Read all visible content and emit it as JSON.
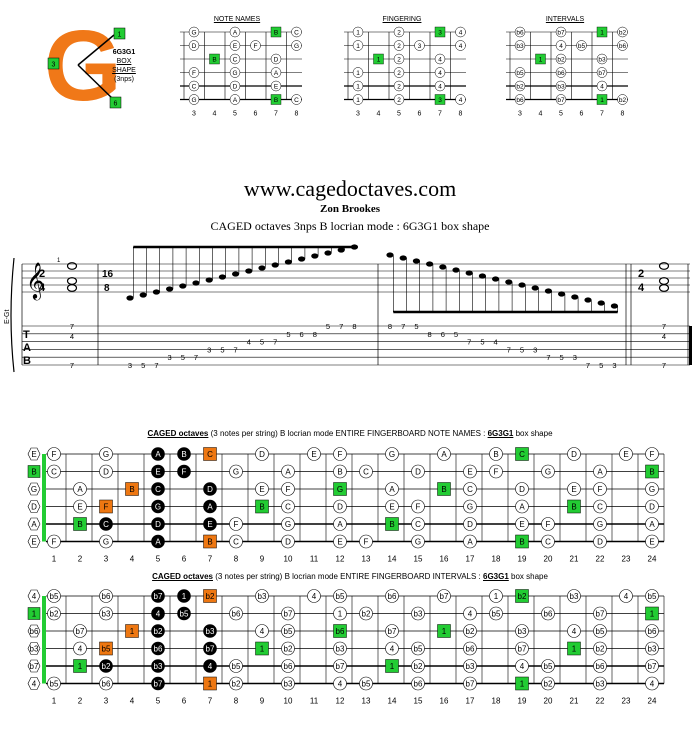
{
  "logo": {
    "letter": "G",
    "shape_code": "6G3G1",
    "shape_label": "BOX",
    "shape_word": "SHAPE",
    "shape_note": "(3nps)",
    "markers": [
      "1",
      "3",
      "6"
    ]
  },
  "mini_diagrams": [
    {
      "title": "NOTE NAMES",
      "frets": [
        "3",
        "4",
        "5",
        "6",
        "7",
        "8"
      ],
      "grid": [
        [
          "G",
          "",
          "A",
          "",
          "B",
          "C"
        ],
        [
          "D",
          "",
          "E",
          "F",
          "",
          "G"
        ],
        [
          "",
          "B",
          "C",
          "",
          "D",
          ""
        ],
        [
          "F",
          "",
          "G",
          "",
          "A",
          ""
        ],
        [
          "C",
          "",
          "D",
          "",
          "E",
          ""
        ],
        [
          "G",
          "",
          "A",
          "",
          "B",
          "C"
        ]
      ],
      "green": [
        [
          0,
          4
        ],
        [
          2,
          1
        ],
        [
          5,
          4
        ]
      ]
    },
    {
      "title": "FINGERING",
      "frets": [
        "3",
        "4",
        "5",
        "6",
        "7",
        "8"
      ],
      "grid": [
        [
          "1",
          "",
          "2",
          "",
          "3",
          "4"
        ],
        [
          "1",
          "",
          "2",
          "3",
          "",
          "4"
        ],
        [
          "",
          "1",
          "2",
          "",
          "4",
          ""
        ],
        [
          "1",
          "",
          "2",
          "",
          "4",
          ""
        ],
        [
          "1",
          "",
          "2",
          "",
          "4",
          ""
        ],
        [
          "1",
          "",
          "2",
          "",
          "3",
          "4"
        ]
      ],
      "green": [
        [
          0,
          4
        ],
        [
          2,
          1
        ],
        [
          5,
          4
        ]
      ]
    },
    {
      "title": "INTERVALS",
      "frets": [
        "3",
        "4",
        "5",
        "6",
        "7",
        "8"
      ],
      "grid": [
        [
          "b6",
          "",
          "b7",
          "",
          "1",
          "b2"
        ],
        [
          "b3",
          "",
          "4",
          "b5",
          "",
          "b6"
        ],
        [
          "",
          "1",
          "b2",
          "",
          "b3",
          ""
        ],
        [
          "b5",
          "",
          "b6",
          "",
          "b7",
          ""
        ],
        [
          "b2",
          "",
          "b3",
          "",
          "4",
          ""
        ],
        [
          "b6",
          "",
          "b7",
          "",
          "1",
          "b2"
        ]
      ],
      "green": [
        [
          0,
          4
        ],
        [
          2,
          1
        ],
        [
          5,
          4
        ]
      ]
    }
  ],
  "header": {
    "site": "www.cagedoctaves.com",
    "author": "Zon Brookes",
    "subtitle": "CAGED octaves 3nps B locrian mode  : 6G3G1 box shape"
  },
  "notation": {
    "tuning": "E-Gt",
    "time_start": [
      "2",
      "4"
    ],
    "time_run": [
      "16",
      "8"
    ],
    "time_end": [
      "2",
      "4"
    ],
    "tab_letters": [
      "T",
      "A",
      "B"
    ],
    "chord_start": [
      "7",
      "4",
      "7"
    ],
    "chord_end": [
      "7",
      "4",
      "7"
    ],
    "run_up": [
      "3",
      "5",
      "7",
      "3",
      "5",
      "7",
      "3",
      "5",
      "7",
      "4",
      "5",
      "7",
      "5",
      "6",
      "8",
      "5",
      "7",
      "8"
    ],
    "run_down": [
      "8",
      "7",
      "5",
      "8",
      "6",
      "5",
      "7",
      "5",
      "4",
      "7",
      "5",
      "3",
      "7",
      "5",
      "3",
      "7",
      "5",
      "3"
    ],
    "fingering_mark": "1"
  },
  "fretboard_notes": {
    "title_bold": "CAGED octaves",
    "title_rest": " (3 notes per string)  B locrian mode  ENTIRE FINGERBOARD  NOTE NAMES : ",
    "title_code": "6G3G1",
    "title_tail": " box  shape",
    "fret_numbers": [
      "1",
      "2",
      "3",
      "4",
      "5",
      "6",
      "7",
      "8",
      "9",
      "10",
      "11",
      "12",
      "13",
      "14",
      "15",
      "16",
      "17",
      "18",
      "19",
      "20",
      "21",
      "22",
      "23",
      "24"
    ],
    "open": [
      "E",
      "B",
      "G",
      "D",
      "A",
      "E"
    ],
    "strings": [
      [
        "F",
        "",
        "G",
        "",
        "A",
        "B",
        "C",
        "",
        "D",
        "",
        "E",
        "F",
        "",
        "G",
        "",
        "A",
        "",
        "B",
        "C",
        "",
        "D",
        "",
        "E",
        "F"
      ],
      [
        "C",
        "",
        "D",
        "",
        "E",
        "F",
        "",
        "G",
        "",
        "A",
        "",
        "B",
        "C",
        "",
        "D",
        "",
        "E",
        "F",
        "",
        "G",
        "",
        "A",
        "",
        "B"
      ],
      [
        "",
        "A",
        "",
        "B",
        "C",
        "",
        "D",
        "",
        "E",
        "F",
        "",
        "G",
        "",
        "A",
        "",
        "B",
        "C",
        "",
        "D",
        "",
        "E",
        "F",
        "",
        "G"
      ],
      [
        "",
        "E",
        "F",
        "",
        "G",
        "",
        "A",
        "",
        "B",
        "C",
        "",
        "D",
        "",
        "E",
        "F",
        "",
        "G",
        "",
        "A",
        "",
        "B",
        "C",
        "",
        "D"
      ],
      [
        "",
        "B",
        "C",
        "",
        "D",
        "",
        "E",
        "F",
        "",
        "G",
        "",
        "A",
        "",
        "B",
        "C",
        "",
        "D",
        "",
        "E",
        "F",
        "",
        "G",
        "",
        "A"
      ],
      [
        "F",
        "",
        "G",
        "",
        "A",
        "",
        "B",
        "C",
        "",
        "D",
        "",
        "E",
        "F",
        "",
        "G",
        "",
        "A",
        "",
        "B",
        "C",
        "",
        "D",
        "",
        "E"
      ]
    ]
  },
  "fretboard_intervals": {
    "title_bold": "CAGED octaves",
    "title_rest": " (3 notes per string)  B locrian mode  ENTIRE FINGERBOARD  INTERVALS : ",
    "title_code": "6G3G1",
    "title_tail": " box shape",
    "fret_numbers": [
      "1",
      "2",
      "3",
      "4",
      "5",
      "6",
      "7",
      "8",
      "9",
      "10",
      "11",
      "12",
      "13",
      "14",
      "15",
      "16",
      "17",
      "18",
      "19",
      "20",
      "21",
      "22",
      "23",
      "24"
    ],
    "open": [
      "4",
      "1",
      "b6",
      "b3",
      "b7",
      "4"
    ],
    "strings": [
      [
        "b5",
        "",
        "b6",
        "",
        "b7",
        "1",
        "b2",
        "",
        "b3",
        "",
        "4",
        "b5",
        "",
        "b6",
        "",
        "b7",
        "",
        "1",
        "b2",
        "",
        "b3",
        "",
        "4",
        "b5"
      ],
      [
        "b2",
        "",
        "b3",
        "",
        "4",
        "b5",
        "",
        "b6",
        "",
        "b7",
        "",
        "1",
        "b2",
        "",
        "b3",
        "",
        "4",
        "b5",
        "",
        "b6",
        "",
        "b7",
        "",
        "1"
      ],
      [
        "",
        "b7",
        "",
        "1",
        "b2",
        "",
        "b3",
        "",
        "4",
        "b5",
        "",
        "b6",
        "",
        "b7",
        "",
        "1",
        "b2",
        "",
        "b3",
        "",
        "4",
        "b5",
        "",
        "b6"
      ],
      [
        "",
        "4",
        "b5",
        "",
        "b6",
        "",
        "b7",
        "",
        "1",
        "b2",
        "",
        "b3",
        "",
        "4",
        "b5",
        "",
        "b6",
        "",
        "b7",
        "",
        "1",
        "b2",
        "",
        "b3"
      ],
      [
        "",
        "1",
        "b2",
        "",
        "b3",
        "",
        "4",
        "b5",
        "",
        "b6",
        "",
        "b7",
        "",
        "1",
        "b2",
        "",
        "b3",
        "",
        "4",
        "b5",
        "",
        "b6",
        "",
        "b7"
      ],
      [
        "b5",
        "",
        "b6",
        "",
        "b7",
        "",
        "1",
        "b2",
        "",
        "b3",
        "",
        "4",
        "b5",
        "",
        "b6",
        "",
        "b7",
        "",
        "1",
        "b2",
        "",
        "b3",
        "",
        "4"
      ]
    ]
  },
  "colors": {
    "green": "#22cc33",
    "orange": "#ee7711",
    "black": "#000000",
    "logo": "#f07818"
  }
}
